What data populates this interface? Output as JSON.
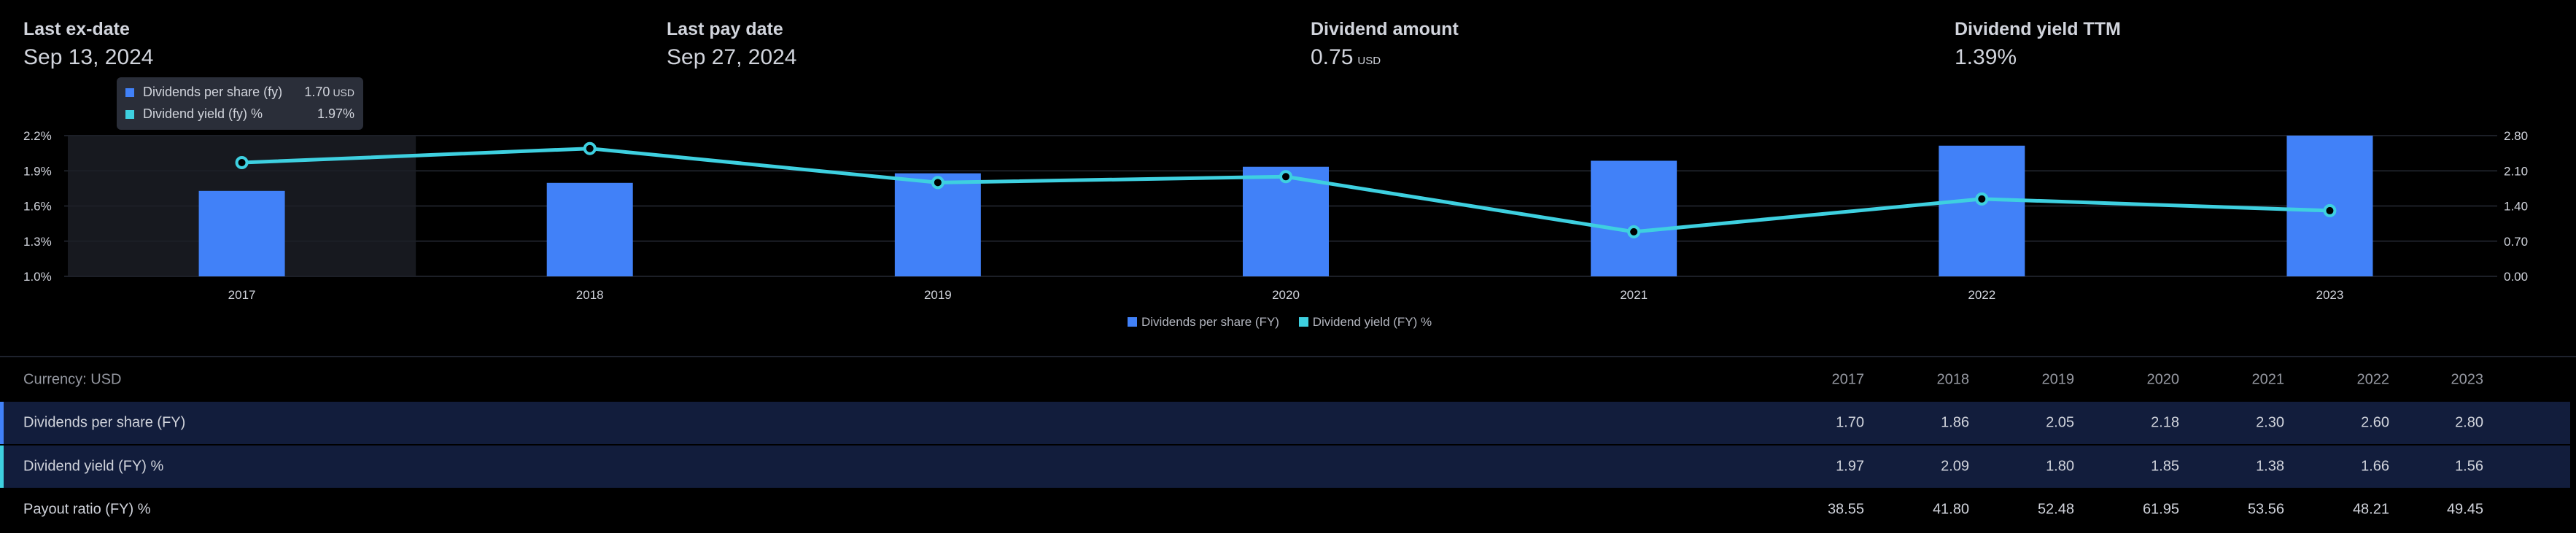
{
  "stats": [
    {
      "label": "Last ex-date",
      "value": "Sep 13, 2024",
      "unit": ""
    },
    {
      "label": "Last pay date",
      "value": "Sep 27, 2024",
      "unit": ""
    },
    {
      "label": "Dividend amount",
      "value": "0.75",
      "unit": "USD"
    },
    {
      "label": "Dividend yield TTM",
      "value": "1.39%",
      "unit": ""
    }
  ],
  "tooltip": {
    "dps_label": "Dividends per share (fy)",
    "dps_value": "1.70",
    "dps_unit": "USD",
    "yield_label": "Dividend yield (fy) %",
    "yield_value": "1.97%"
  },
  "legend": {
    "dps": "Dividends per share (FY)",
    "yield": "Dividend yield (FY) %"
  },
  "colors": {
    "bar": "#4181f8",
    "line": "#3ed0e0",
    "highlight": "#17191f"
  },
  "chart_data": {
    "type": "bar",
    "categories": [
      "2017",
      "2018",
      "2019",
      "2020",
      "2021",
      "2022",
      "2023"
    ],
    "series": [
      {
        "name": "Dividends per share (FY)",
        "type": "bar",
        "axis": "right",
        "values": [
          1.7,
          1.86,
          2.05,
          2.18,
          2.3,
          2.6,
          2.8
        ]
      },
      {
        "name": "Dividend yield (FY) %",
        "type": "line",
        "axis": "left",
        "values": [
          1.97,
          2.09,
          1.8,
          1.85,
          1.38,
          1.66,
          1.56
        ]
      }
    ],
    "left_axis": {
      "ticks": [
        "2.2%",
        "1.9%",
        "1.6%",
        "1.3%",
        "1.0%"
      ],
      "range": [
        1.0,
        2.2
      ]
    },
    "right_axis": {
      "ticks": [
        "2.80",
        "2.10",
        "1.40",
        "0.70",
        "0.00"
      ],
      "range": [
        0.0,
        2.8
      ]
    },
    "highlighted_category": "2017",
    "grid": true,
    "legend_position": "bottom-center"
  },
  "table": {
    "header_label": "Currency: USD",
    "years": [
      "2017",
      "2018",
      "2019",
      "2020",
      "2021",
      "2022",
      "2023"
    ],
    "rows": [
      {
        "label": "Dividends per share (FY)",
        "values": [
          "1.70",
          "1.86",
          "2.05",
          "2.18",
          "2.30",
          "2.60",
          "2.80"
        ]
      },
      {
        "label": "Dividend yield (FY) %",
        "values": [
          "1.97",
          "2.09",
          "1.80",
          "1.85",
          "1.38",
          "1.66",
          "1.56"
        ]
      },
      {
        "label": "Payout ratio (FY) %",
        "values": [
          "38.55",
          "41.80",
          "52.48",
          "61.95",
          "53.56",
          "48.21",
          "49.45"
        ]
      }
    ]
  }
}
